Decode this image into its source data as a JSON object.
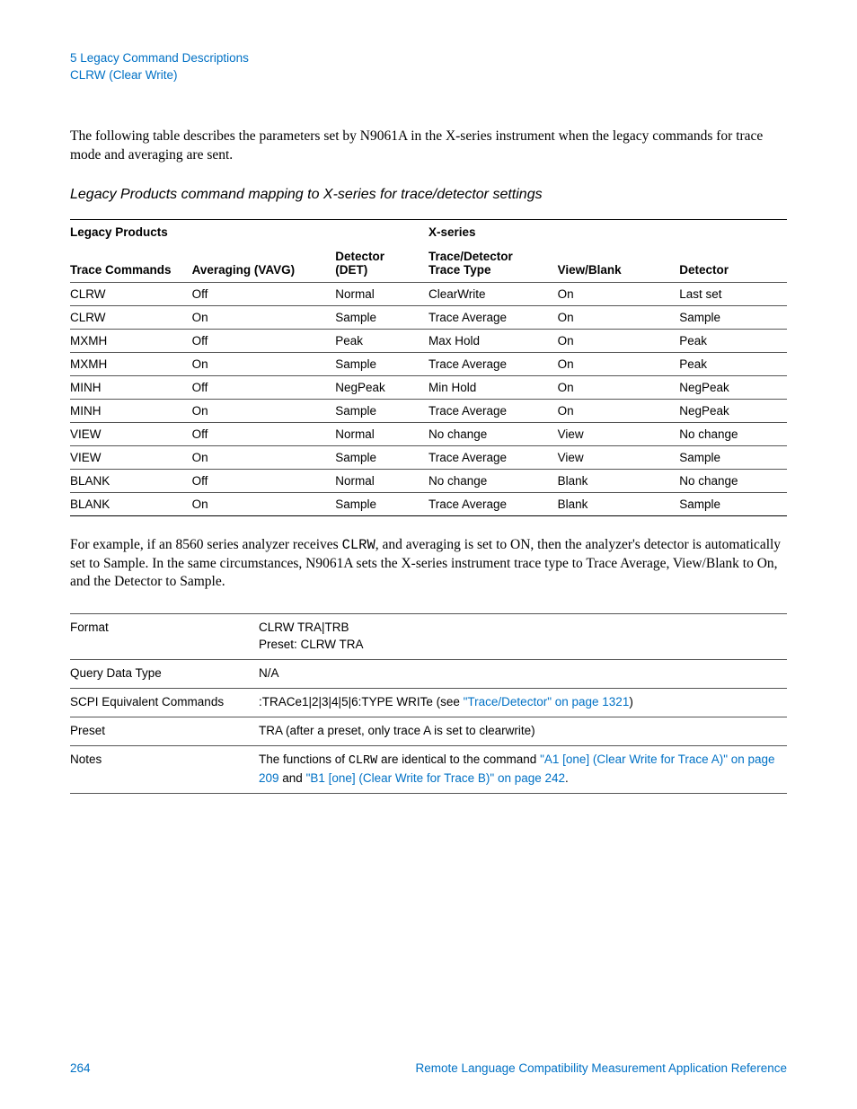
{
  "header": {
    "chapter": "5  Legacy Command Descriptions",
    "section": "CLRW (Clear Write)"
  },
  "intro": "The following table describes the parameters set by N9061A in the X-series instrument when the legacy commands for trace mode and averaging are sent.",
  "table_title": "Legacy Products command mapping to X-series for trace/detector settings",
  "table1": {
    "group_headers": {
      "legacy": "Legacy Products",
      "xseries": "X-series"
    },
    "columns": [
      "Trace Commands",
      "Averaging (VAVG)",
      "Detector (DET)",
      "Trace/Detector Trace Type",
      "View/Blank",
      "Detector"
    ],
    "col_widths": [
      "17%",
      "20%",
      "13%",
      "18%",
      "17%",
      "15%"
    ],
    "rows": [
      [
        "CLRW",
        "Off",
        "Normal",
        "ClearWrite",
        "On",
        "Last set"
      ],
      [
        "CLRW",
        "On",
        "Sample",
        "Trace Average",
        "On",
        "Sample"
      ],
      [
        "MXMH",
        "Off",
        "Peak",
        "Max Hold",
        "On",
        "Peak"
      ],
      [
        "MXMH",
        "On",
        "Sample",
        "Trace Average",
        "On",
        "Peak"
      ],
      [
        "MINH",
        "Off",
        "NegPeak",
        "Min Hold",
        "On",
        "NegPeak"
      ],
      [
        "MINH",
        "On",
        "Sample",
        "Trace Average",
        "On",
        "NegPeak"
      ],
      [
        "VIEW",
        "Off",
        "Normal",
        "No change",
        "View",
        "No change"
      ],
      [
        "VIEW",
        "On",
        "Sample",
        "Trace Average",
        "View",
        "Sample"
      ],
      [
        "BLANK",
        "Off",
        "Normal",
        "No change",
        "Blank",
        "No change"
      ],
      [
        "BLANK",
        "On",
        "Sample",
        "Trace Average",
        "Blank",
        "Sample"
      ]
    ]
  },
  "example_para": {
    "prefix": "For example, if an 8560 series analyzer receives ",
    "mono": "CLRW",
    "suffix": ", and averaging is set to ON, then the analyzer's detector is automatically set to Sample. In the same circumstances, N9061A sets the X-series instrument trace type to Trace Average, View/Blank to On, and the Detector to Sample."
  },
  "table2": {
    "rows": [
      {
        "label": "Format",
        "parts": [
          {
            "text": "CLRW TRA|TRB"
          }
        ],
        "line2": "Preset: CLRW TRA"
      },
      {
        "label": "Query Data Type",
        "parts": [
          {
            "text": "N/A"
          }
        ]
      },
      {
        "label": "SCPI Equivalent Commands",
        "parts": [
          {
            "text": ":TRACe1|2|3|4|5|6:TYPE WRITe (see "
          },
          {
            "text": "\"Trace/Detector\" on page 1321",
            "link": true
          },
          {
            "text": ")"
          }
        ]
      },
      {
        "label": "Preset",
        "parts": [
          {
            "text": "TRA (after a preset, only trace A is set to clearwrite)"
          }
        ]
      },
      {
        "label": "Notes",
        "parts": [
          {
            "text": "The functions of "
          },
          {
            "text": "CLRW",
            "mono": true
          },
          {
            "text": "  are identical to the command "
          },
          {
            "text": "\"A1 [one] (Clear Write for Trace A)\" on page 209",
            "link": true
          },
          {
            "text": " and "
          },
          {
            "text": "\"B1 [one] (Clear Write for Trace B)\" on page 242",
            "link": true
          },
          {
            "text": "."
          }
        ]
      }
    ]
  },
  "footer": {
    "page": "264",
    "doc": "Remote Language Compatibility Measurement Application Reference"
  },
  "colors": {
    "link": "#0071c5",
    "text": "#000000",
    "border": "#000000"
  }
}
